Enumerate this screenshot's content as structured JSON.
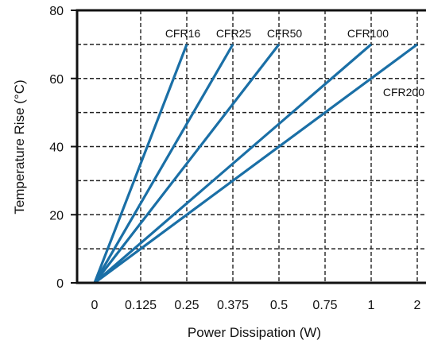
{
  "chart_data": {
    "type": "line",
    "xlabel": "Power Dissipation (W)",
    "ylabel": "Temperature Rise (°C)",
    "x_tick_labels": [
      "0",
      "0.125",
      "0.25",
      "0.375",
      "0.5",
      "0.75",
      "1",
      "2"
    ],
    "y_ticks": [
      0,
      20,
      40,
      60,
      80
    ],
    "y_tick_labels": [
      "0",
      "20",
      "40",
      "60",
      "80"
    ],
    "ylim": [
      0,
      80
    ],
    "x_scale": "categorical (each tick label is one equal step)",
    "grid": "dashed",
    "series": [
      {
        "name": "CFR16",
        "x": [
          "0",
          "0.25"
        ],
        "y": [
          0,
          70
        ]
      },
      {
        "name": "CFR25",
        "x": [
          "0",
          "0.375"
        ],
        "y": [
          0,
          70
        ]
      },
      {
        "name": "CFR50",
        "x": [
          "0",
          "0.5"
        ],
        "y": [
          0,
          70
        ]
      },
      {
        "name": "CFR100",
        "x": [
          "0",
          "1"
        ],
        "y": [
          0,
          70
        ]
      },
      {
        "name": "CFR200",
        "x": [
          "0",
          "2"
        ],
        "y": [
          0,
          70
        ]
      }
    ],
    "colors": {
      "line": "#1a6fa6",
      "axis": "#111111",
      "grid": "#222222"
    }
  }
}
